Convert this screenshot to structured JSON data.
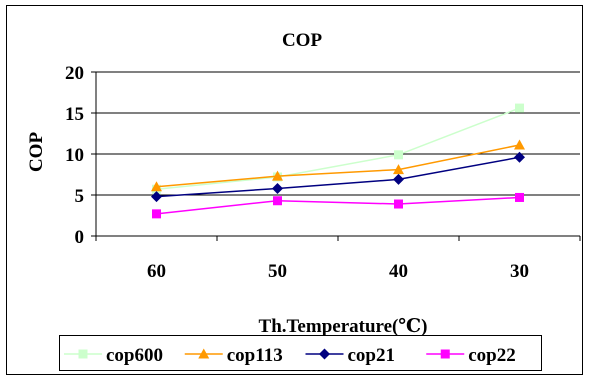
{
  "chart_data": {
    "type": "line",
    "title": "COP",
    "xlabel": "Th.Temperature(℃)",
    "ylabel": "COP",
    "categories": [
      "60",
      "50",
      "40",
      "30"
    ],
    "ylim": [
      0,
      20
    ],
    "yticks": [
      0,
      5,
      10,
      15,
      20
    ],
    "grid": "horizontal",
    "legend_position": "bottom",
    "series": [
      {
        "name": "cop600",
        "color": "#ccffcc",
        "marker": "square",
        "values": [
          5.7,
          7.2,
          9.9,
          15.6
        ]
      },
      {
        "name": "cop113",
        "color": "#ff9900",
        "marker": "triangle",
        "values": [
          6.0,
          7.3,
          8.1,
          11.1
        ]
      },
      {
        "name": "cop21",
        "color": "#000080",
        "marker": "diamond",
        "values": [
          4.8,
          5.8,
          6.9,
          9.6
        ]
      },
      {
        "name": "cop22",
        "color": "#ff00ff",
        "marker": "square",
        "values": [
          2.7,
          4.3,
          3.9,
          4.7
        ]
      }
    ]
  }
}
